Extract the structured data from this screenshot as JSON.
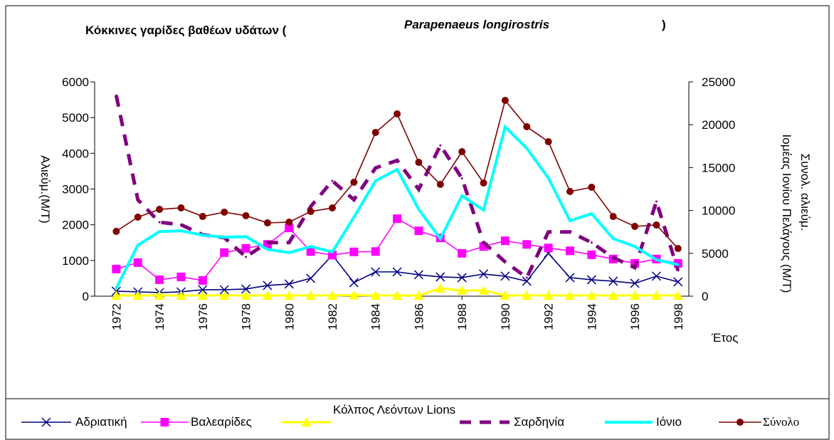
{
  "chart_data": {
    "type": "line",
    "title_parts": [
      "Κόκκινες γαρίδες βαθέων υδάτων (",
      "Parapenaeus longirostris",
      ")"
    ],
    "y_label": "Αλιεύμ.(Μ/Τ)",
    "y2_label": [
      "Συνολ. αλιεύμ.",
      "Ιομέας Ιονίου Πελάγους (Μ/Τ)"
    ],
    "x_label": "Έτος",
    "x": [
      1972,
      1973,
      1974,
      1975,
      1976,
      1977,
      1978,
      1979,
      1980,
      1981,
      1982,
      1983,
      1984,
      1985,
      1986,
      1987,
      1988,
      1989,
      1990,
      1991,
      1992,
      1993,
      1994,
      1995,
      1996,
      1997,
      1998
    ],
    "xlim": [
      1971,
      1998.5
    ],
    "xticks": [
      1972,
      1974,
      1976,
      1978,
      1980,
      1982,
      1984,
      1986,
      1988,
      1990,
      1992,
      1994,
      1996,
      1998
    ],
    "ylim": [
      0,
      6000
    ],
    "yticks": [
      0,
      1000,
      2000,
      3000,
      4000,
      5000,
      6000
    ],
    "y2lim": [
      0,
      25000
    ],
    "y2ticks": [
      0,
      5000,
      10000,
      15000,
      20000,
      25000
    ],
    "series": [
      {
        "name": "Αδριατική",
        "color": "#000080",
        "marker": "x",
        "values": [
          140,
          120,
          100,
          120,
          180,
          180,
          200,
          300,
          340,
          500,
          1150,
          380,
          680,
          680,
          600,
          540,
          520,
          620,
          560,
          420,
          1200,
          520,
          460,
          420,
          360,
          560,
          400
        ]
      },
      {
        "name": "Βαλεαρίδες",
        "color": "#ff00ff",
        "marker": "square",
        "values": [
          760,
          940,
          460,
          540,
          440,
          1220,
          1340,
          1450,
          1910,
          1250,
          1150,
          1240,
          1250,
          2170,
          1830,
          1630,
          1200,
          1390,
          1550,
          1450,
          1350,
          1270,
          1160,
          1040,
          920,
          1040,
          920
        ]
      },
      {
        "name": "Κόλπος Λεόντων Lions",
        "color": "#ffff00",
        "marker": "triangle",
        "values": [
          20,
          20,
          20,
          20,
          20,
          20,
          20,
          20,
          20,
          20,
          20,
          30,
          20,
          20,
          20,
          220,
          160,
          160,
          20,
          20,
          20,
          20,
          20,
          20,
          20,
          20,
          20
        ]
      },
      {
        "name": "Σαρδηνία",
        "color": "#800080",
        "marker": "none",
        "dashed": true,
        "values": [
          5620,
          2700,
          2070,
          2000,
          1720,
          1640,
          1100,
          1500,
          1500,
          2510,
          3230,
          2700,
          3590,
          3800,
          2990,
          4220,
          3300,
          1500,
          960,
          520,
          1800,
          1800,
          1500,
          1080,
          800,
          2650,
          720
        ]
      },
      {
        "name": "Ιόνιο",
        "color": "#00ffff",
        "marker": "none",
        "values": [
          220,
          1430,
          1810,
          1830,
          1710,
          1650,
          1670,
          1310,
          1220,
          1390,
          1240,
          2210,
          3230,
          3550,
          2430,
          1610,
          2810,
          2410,
          4740,
          4140,
          3310,
          2110,
          2310,
          1610,
          1390,
          1020,
          880
        ]
      },
      {
        "name": "Σύνολο",
        "color": "#800000",
        "marker": "circle",
        "axis": "y2",
        "values": [
          7560,
          9220,
          10130,
          10300,
          9300,
          9800,
          9390,
          8550,
          8640,
          9880,
          10300,
          13290,
          19100,
          21260,
          15610,
          13040,
          16860,
          13210,
          22840,
          19770,
          18020,
          12210,
          12710,
          9300,
          8140,
          8310,
          5560
        ]
      }
    ]
  }
}
